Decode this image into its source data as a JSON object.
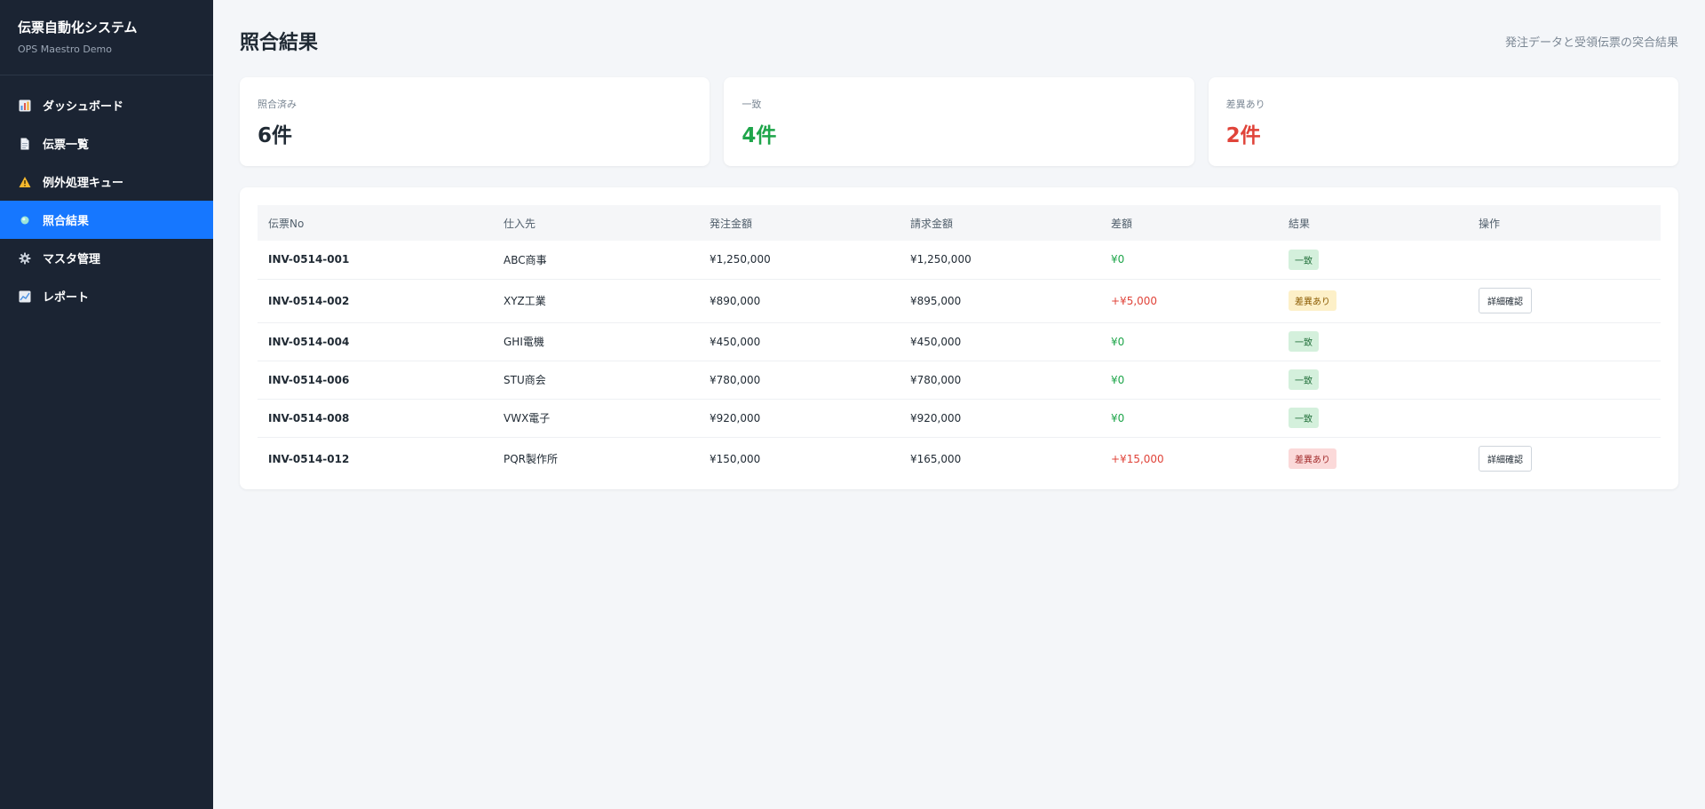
{
  "app": {
    "title": "伝票自動化システム",
    "subtitle": "OPS Maestro Demo"
  },
  "nav": [
    {
      "label": "ダッシュボード",
      "icon": "chart-icon",
      "active": false
    },
    {
      "label": "伝票一覧",
      "icon": "document-icon",
      "active": false
    },
    {
      "label": "例外処理キュー",
      "icon": "warning-icon",
      "active": false
    },
    {
      "label": "照合結果",
      "icon": "dot-icon",
      "active": true
    },
    {
      "label": "マスタ管理",
      "icon": "gear-icon",
      "active": false
    },
    {
      "label": "レポート",
      "icon": "trend-icon",
      "active": false
    }
  ],
  "page": {
    "title": "照合結果",
    "description": "発注データと受領伝票の突合結果"
  },
  "summary": [
    {
      "label": "照合済み",
      "value": "6件",
      "color": "#1f2933"
    },
    {
      "label": "一致",
      "value": "4件",
      "color": "#1ea54a"
    },
    {
      "label": "差異あり",
      "value": "2件",
      "color": "#e0443a"
    }
  ],
  "table": {
    "headers": [
      "伝票No",
      "仕入先",
      "発注金額",
      "請求金額",
      "差額",
      "結果",
      "操作"
    ],
    "rows": [
      {
        "no": "INV-0514-001",
        "supplier": "ABC商事",
        "order": "¥1,250,000",
        "invoice": "¥1,250,000",
        "diff": "¥0",
        "status": "一致",
        "status_type": "match",
        "action": ""
      },
      {
        "no": "INV-0514-002",
        "supplier": "XYZ工業",
        "order": "¥890,000",
        "invoice": "¥895,000",
        "diff": "+¥5,000",
        "status": "差異あり",
        "status_type": "warn",
        "action": "詳細確認"
      },
      {
        "no": "INV-0514-004",
        "supplier": "GHI電機",
        "order": "¥450,000",
        "invoice": "¥450,000",
        "diff": "¥0",
        "status": "一致",
        "status_type": "match",
        "action": ""
      },
      {
        "no": "INV-0514-006",
        "supplier": "STU商会",
        "order": "¥780,000",
        "invoice": "¥780,000",
        "diff": "¥0",
        "status": "一致",
        "status_type": "match",
        "action": ""
      },
      {
        "no": "INV-0514-008",
        "supplier": "VWX電子",
        "order": "¥920,000",
        "invoice": "¥920,000",
        "diff": "¥0",
        "status": "一致",
        "status_type": "match",
        "action": ""
      },
      {
        "no": "INV-0514-012",
        "supplier": "PQR製作所",
        "order": "¥150,000",
        "invoice": "¥165,000",
        "diff": "+¥15,000",
        "status": "差異あり",
        "status_type": "error",
        "action": "詳細確認"
      }
    ]
  },
  "colors": {
    "sidebar_bg": "#1b2433",
    "active_nav": "#1677ff",
    "match_green": "#1ea54a",
    "diff_red": "#e0443a",
    "badge_match_bg": "#d4f0dc",
    "badge_match_fg": "#1c6b35",
    "badge_warn_bg": "#fdf0c8",
    "badge_warn_fg": "#8a5a00",
    "badge_error_bg": "#fbd9d9",
    "badge_error_fg": "#a12a2a"
  }
}
